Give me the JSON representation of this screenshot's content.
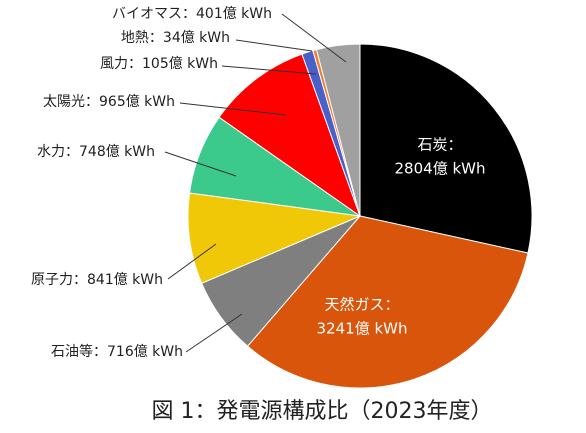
{
  "chart_data": {
    "type": "pie",
    "title": "図 1：発電源構成比（2023年度）",
    "categories": [
      "石炭：",
      "天然ガス：",
      "石油等：",
      "原子力：",
      "水力：",
      "太陽光：",
      "風力：",
      "地熱：",
      "バイオマス："
    ],
    "values": [
      2804,
      3241,
      716,
      841,
      748,
      965,
      105,
      34,
      401
    ],
    "value_labels": [
      "2804億 kWh",
      "3241億 kWh",
      "716億 kWh",
      "841億 kWh",
      "748億 kWh",
      "965億 kWh",
      "105億 kWh",
      "34億 kWh",
      "401億 kWh"
    ],
    "colors": [
      "#000000",
      "#d9550b",
      "#7f7f7f",
      "#f0c808",
      "#3cc98c",
      "#ff0000",
      "#4a5fc8",
      "#ed7d31",
      "#a0a0a0"
    ]
  }
}
